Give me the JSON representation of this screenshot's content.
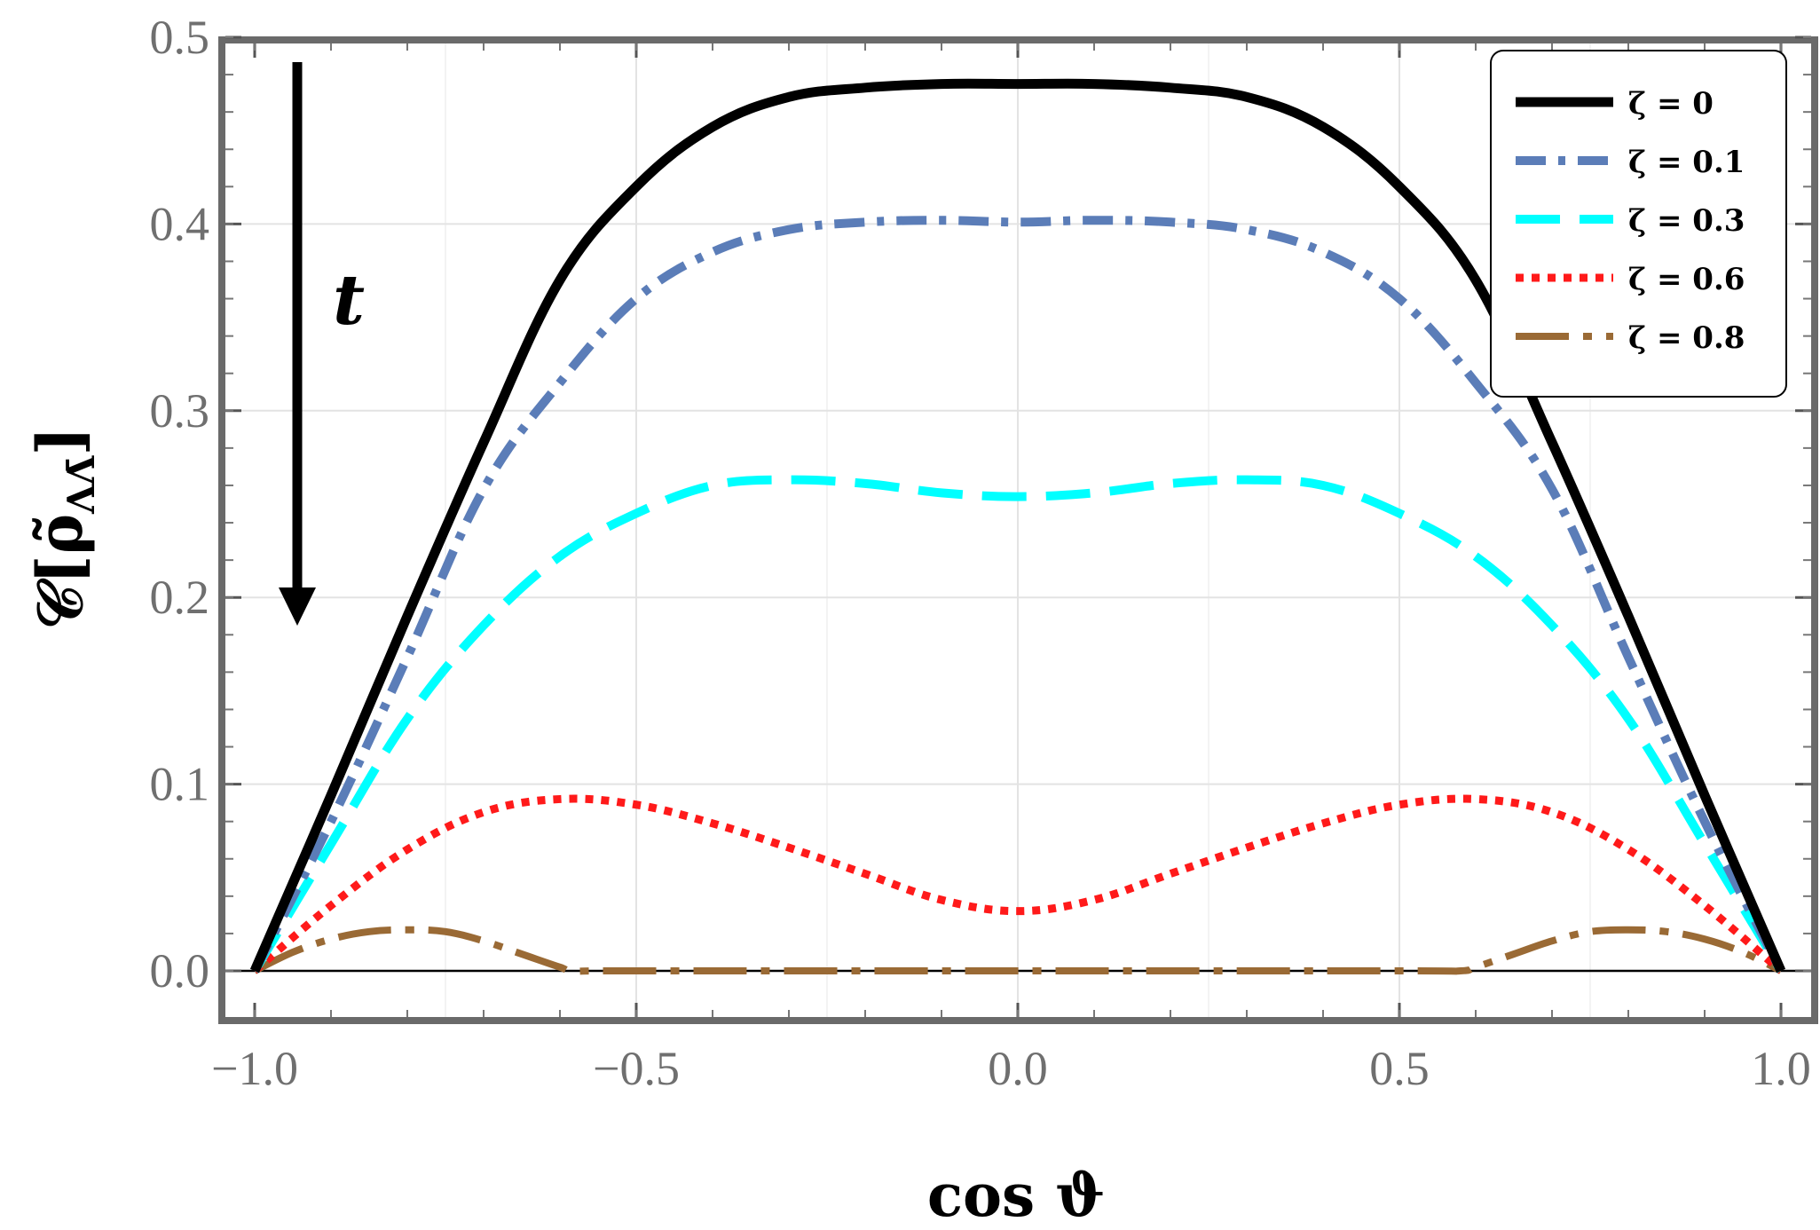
{
  "chart_data": {
    "type": "line",
    "title": "",
    "xlabel": "cos ϑ",
    "ylabel": "𝒞[ρ̃",
    "ylabel_subscript": "ΛΛ̄",
    "ylabel_close": "]",
    "xlim": [
      -1.0,
      1.0
    ],
    "ylim": [
      0.0,
      0.5
    ],
    "xticks": [
      "−1.0",
      "−0.5",
      "0.0",
      "0.5",
      "1.0"
    ],
    "yticks": [
      "0.0",
      "0.1",
      "0.2",
      "0.3",
      "0.4",
      "0.5"
    ],
    "annotation": {
      "text": "t",
      "meaning": "arrow pointing down"
    },
    "legend_position": "top-right",
    "series": [
      {
        "name": "ζ = 0",
        "color": "#000000",
        "style": "solid",
        "x": [
          -1.0,
          -0.9,
          -0.8,
          -0.7,
          -0.6,
          -0.5,
          -0.4,
          -0.3,
          -0.2,
          -0.1,
          0.0,
          0.1,
          0.2,
          0.3,
          0.4,
          0.5,
          0.6,
          0.7,
          0.8,
          0.9,
          1.0
        ],
        "y": [
          0.0,
          0.094,
          0.19,
          0.283,
          0.37,
          0.42,
          0.452,
          0.468,
          0.473,
          0.475,
          0.475,
          0.475,
          0.473,
          0.468,
          0.452,
          0.42,
          0.37,
          0.283,
          0.19,
          0.094,
          0.0
        ]
      },
      {
        "name": "ζ = 0.1",
        "color": "#5b7db8",
        "style": "dashdot",
        "x": [
          -1.0,
          -0.9,
          -0.8,
          -0.7,
          -0.6,
          -0.5,
          -0.4,
          -0.3,
          -0.2,
          -0.1,
          0.0,
          0.1,
          0.2,
          0.3,
          0.4,
          0.5,
          0.6,
          0.7,
          0.8,
          0.9,
          1.0
        ],
        "y": [
          0.0,
          0.08,
          0.168,
          0.258,
          0.315,
          0.36,
          0.385,
          0.397,
          0.401,
          0.402,
          0.401,
          0.402,
          0.401,
          0.397,
          0.385,
          0.36,
          0.315,
          0.258,
          0.168,
          0.08,
          0.0
        ]
      },
      {
        "name": "ζ = 0.3",
        "color": "#00ffff",
        "style": "dashed",
        "x": [
          -1.0,
          -0.9,
          -0.8,
          -0.7,
          -0.6,
          -0.5,
          -0.4,
          -0.3,
          -0.2,
          -0.1,
          0.0,
          0.1,
          0.2,
          0.3,
          0.4,
          0.5,
          0.6,
          0.7,
          0.8,
          0.9,
          1.0
        ],
        "y": [
          0.0,
          0.068,
          0.135,
          0.185,
          0.222,
          0.245,
          0.26,
          0.263,
          0.261,
          0.256,
          0.254,
          0.256,
          0.261,
          0.263,
          0.26,
          0.245,
          0.222,
          0.185,
          0.135,
          0.068,
          0.0
        ]
      },
      {
        "name": "ζ = 0.6",
        "color": "#ff1a1a",
        "style": "dotted",
        "x": [
          -1.0,
          -0.9,
          -0.8,
          -0.7,
          -0.6,
          -0.5,
          -0.4,
          -0.3,
          -0.2,
          -0.1,
          0.0,
          0.1,
          0.2,
          0.3,
          0.4,
          0.5,
          0.6,
          0.7,
          0.8,
          0.9,
          1.0
        ],
        "y": [
          0.0,
          0.035,
          0.065,
          0.085,
          0.092,
          0.089,
          0.079,
          0.066,
          0.052,
          0.038,
          0.032,
          0.038,
          0.052,
          0.066,
          0.079,
          0.089,
          0.092,
          0.085,
          0.065,
          0.035,
          0.0
        ]
      },
      {
        "name": "ζ = 0.8",
        "color": "#9a6a35",
        "style": "longdashdot",
        "x": [
          -1.0,
          -0.95,
          -0.9,
          -0.85,
          -0.8,
          -0.75,
          -0.7,
          -0.65,
          -0.6,
          -0.58,
          -0.5,
          0.0,
          0.5,
          0.58,
          0.6,
          0.65,
          0.7,
          0.75,
          0.8,
          0.85,
          0.9,
          0.95,
          1.0
        ],
        "y": [
          0.0,
          0.01,
          0.017,
          0.021,
          0.022,
          0.021,
          0.016,
          0.009,
          0.002,
          0.0,
          0.0,
          0.0,
          0.0,
          0.0,
          0.002,
          0.009,
          0.016,
          0.021,
          0.022,
          0.021,
          0.017,
          0.01,
          0.0
        ]
      }
    ]
  }
}
